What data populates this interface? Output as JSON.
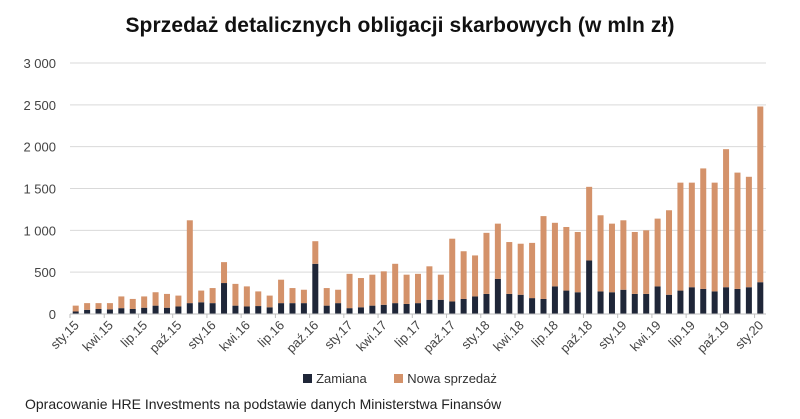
{
  "title": "Sprzedaż detalicznych obligacji skarbowych (w mln zł)",
  "footer": "Opracowanie HRE Investments na podstawie danych Ministerstwa Finansów",
  "legend": [
    {
      "label": "Zamiana",
      "color": "#1f2638"
    },
    {
      "label": "Nowa sprzedaż",
      "color": "#d4926a"
    }
  ],
  "chart_data": {
    "type": "bar",
    "stacked": true,
    "title": "Sprzedaż detalicznych obligacji skarbowych (w mln zł)",
    "xlabel": "",
    "ylabel": "",
    "ylim": [
      0,
      3000
    ],
    "yticks": [
      0,
      500,
      1000,
      1500,
      2000,
      2500,
      3000
    ],
    "ytick_labels": [
      "0",
      "500",
      "1 000",
      "1 500",
      "2 000",
      "2 500",
      "3 000"
    ],
    "grid": true,
    "legend_position": "bottom",
    "xtick_labels": [
      "sty.15",
      "kwi.15",
      "lip.15",
      "paź.15",
      "sty.16",
      "kwi.16",
      "lip.16",
      "paź.16",
      "sty.17",
      "kwi.17",
      "lip.17",
      "paź.17",
      "sty.18",
      "kwi.18",
      "lip.18",
      "paź.18",
      "sty.19",
      "kwi.19",
      "lip.19",
      "paź.19",
      "sty.20"
    ],
    "categories": [
      "sty.15",
      "lut.15",
      "mar.15",
      "kwi.15",
      "maj.15",
      "cze.15",
      "lip.15",
      "sie.15",
      "wrz.15",
      "paź.15",
      "lis.15",
      "gru.15",
      "sty.16",
      "lut.16",
      "mar.16",
      "kwi.16",
      "maj.16",
      "cze.16",
      "lip.16",
      "sie.16",
      "wrz.16",
      "paź.16",
      "lis.16",
      "gru.16",
      "sty.17",
      "lut.17",
      "mar.17",
      "kwi.17",
      "maj.17",
      "cze.17",
      "lip.17",
      "sie.17",
      "wrz.17",
      "paź.17",
      "lis.17",
      "gru.17",
      "sty.18",
      "lut.18",
      "mar.18",
      "kwi.18",
      "maj.18",
      "cze.18",
      "lip.18",
      "sie.18",
      "wrz.18",
      "paź.18",
      "lis.18",
      "gru.18",
      "sty.19",
      "lut.19",
      "mar.19",
      "kwi.19",
      "maj.19",
      "cze.19",
      "lip.19",
      "sie.19",
      "wrz.19",
      "paź.19",
      "lis.19",
      "gru.19",
      "sty.20"
    ],
    "series": [
      {
        "name": "Zamiana",
        "color": "#1f2638",
        "values": [
          30,
          50,
          60,
          55,
          70,
          60,
          75,
          100,
          75,
          90,
          130,
          140,
          130,
          370,
          100,
          90,
          95,
          80,
          130,
          130,
          130,
          600,
          100,
          130,
          70,
          80,
          100,
          110,
          130,
          120,
          130,
          170,
          170,
          150,
          180,
          210,
          240,
          420,
          240,
          230,
          190,
          180,
          330,
          280,
          260,
          640,
          270,
          260,
          290,
          240,
          240,
          330,
          230,
          280,
          320,
          300,
          270,
          320,
          300,
          320,
          380
        ]
      },
      {
        "name": "Nowa sprzedaż",
        "color": "#d4926a",
        "values": [
          70,
          80,
          70,
          75,
          140,
          120,
          135,
          160,
          165,
          130,
          990,
          140,
          180,
          250,
          260,
          240,
          175,
          140,
          280,
          180,
          160,
          270,
          210,
          160,
          410,
          350,
          370,
          400,
          470,
          350,
          350,
          400,
          300,
          750,
          570,
          490,
          730,
          660,
          620,
          610,
          660,
          990,
          760,
          760,
          720,
          880,
          910,
          820,
          830,
          740,
          760,
          810,
          1010,
          1290,
          1250,
          1440,
          1300,
          1650,
          1390,
          1320,
          2100
        ]
      }
    ]
  }
}
